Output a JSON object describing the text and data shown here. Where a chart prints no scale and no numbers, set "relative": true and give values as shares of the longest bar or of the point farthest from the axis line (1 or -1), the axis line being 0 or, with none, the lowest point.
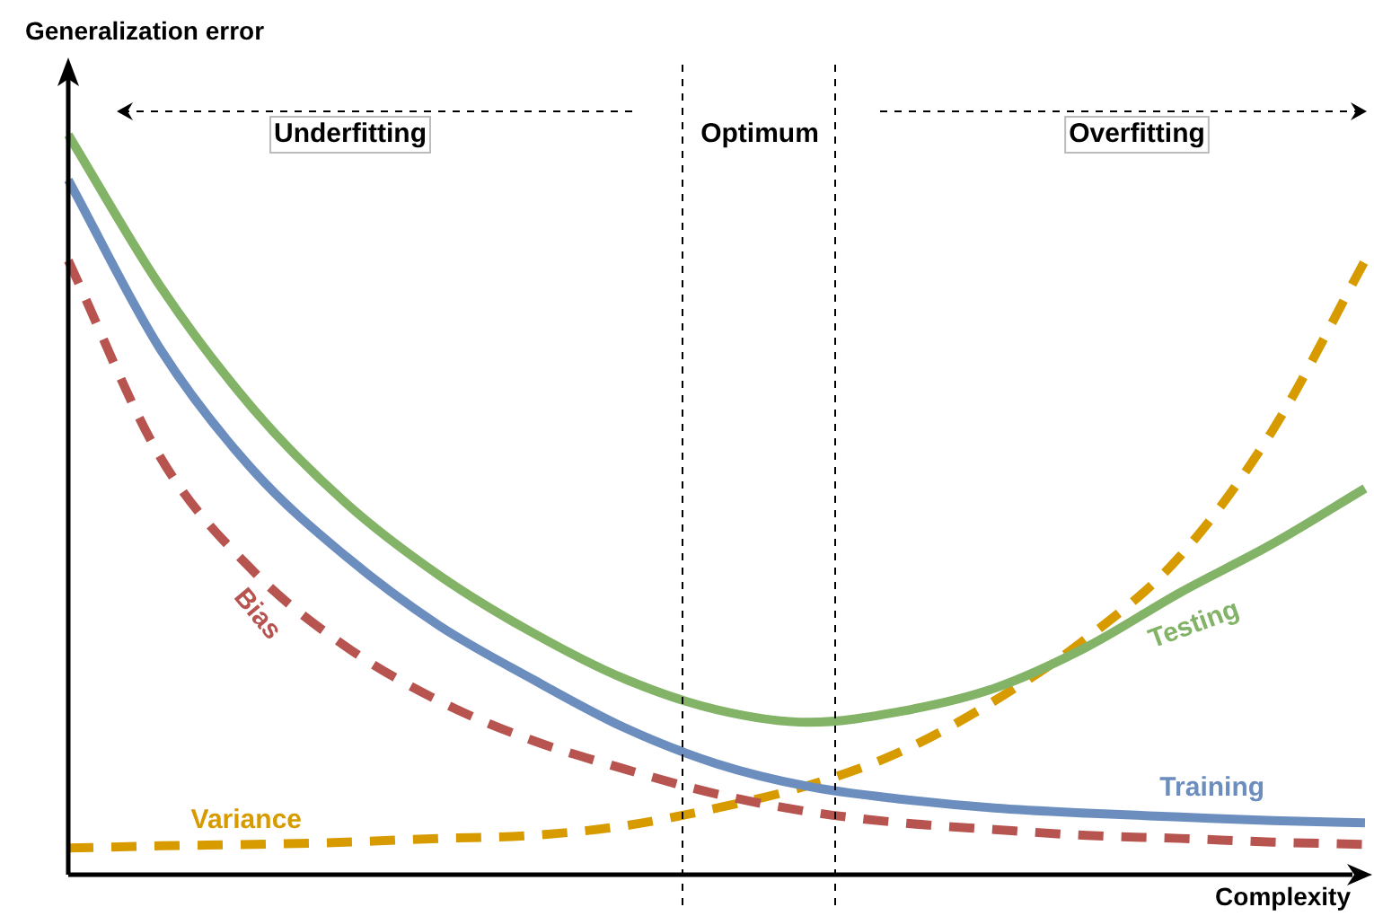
{
  "chart_data": {
    "type": "line",
    "relative": true,
    "xlabel": "Complexity",
    "ylabel": "Generalization error",
    "categories": [
      null,
      null,
      null,
      null,
      null,
      null,
      null,
      null,
      null,
      null,
      null,
      null,
      null,
      null,
      null
    ],
    "series": [
      {
        "name": "Testing",
        "color": "#82b366",
        "values": [
          1.0,
          0.794,
          0.629,
          0.502,
          0.405,
          0.328,
          0.265,
          0.223,
          0.206,
          0.221,
          0.252,
          0.308,
          0.381,
          0.447,
          0.522
        ]
      },
      {
        "name": "Training",
        "color": "#6c8ebf",
        "values": [
          0.939,
          0.709,
          0.546,
          0.43,
          0.337,
          0.265,
          0.199,
          0.15,
          0.119,
          0.102,
          0.09,
          0.083,
          0.078,
          0.073,
          0.07
        ]
      },
      {
        "name": "Bias",
        "color": "#b85450",
        "line_style": "dashed",
        "values": [
          0.83,
          0.563,
          0.41,
          0.308,
          0.235,
          0.182,
          0.143,
          0.109,
          0.085,
          0.07,
          0.061,
          0.053,
          0.049,
          0.044,
          0.041
        ]
      },
      {
        "name": "Variance",
        "color": "#d79b00",
        "line_style": "dashed",
        "values": [
          0.036,
          0.039,
          0.041,
          0.044,
          0.049,
          0.053,
          0.066,
          0.09,
          0.121,
          0.167,
          0.235,
          0.32,
          0.43,
          0.6,
          0.83
        ]
      }
    ],
    "annotations": [
      "Underfitting",
      "Optimum",
      "Overfitting"
    ],
    "legend": false,
    "marker": "none"
  }
}
